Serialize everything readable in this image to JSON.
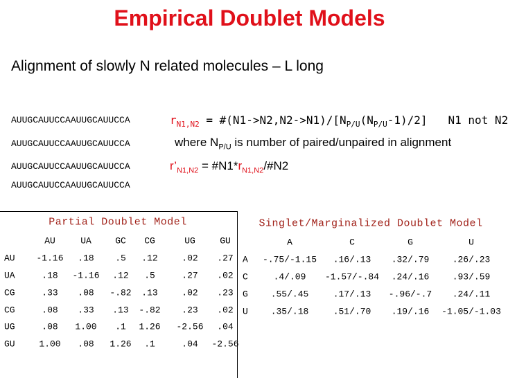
{
  "title": "Empirical Doublet Models",
  "subtitle": "Alignment of slowly N related molecules – L long",
  "sequences": [
    "AUUGCAUUCCAAUUGCAUUCCA",
    "AUUGCAUUCCAAUUGCAUUCCA",
    "AUUGCAUUCCAAUUGCAUUCCA",
    "AUUGCAUUCCAAUUGCAUUCCA"
  ],
  "formulas": [
    {
      "parts": [
        {
          "t": "r",
          "red": true
        },
        {
          "t": "N1,N2",
          "sub": true,
          "red": true
        },
        {
          "t": " =   #(N1->N2,N2->N1)/[N"
        },
        {
          "t": "P/U",
          "sub": true
        },
        {
          "t": "(N"
        },
        {
          "t": "P/U",
          "sub": true
        },
        {
          "t": "-1)/2]"
        }
      ],
      "note": "N1 not N2",
      "mono": true
    },
    {
      "parts": [
        {
          "t": "where N"
        },
        {
          "t": "P/U",
          "sub": true
        },
        {
          "t": " is number of paired/unpaired in alignment"
        }
      ]
    },
    {
      "parts": [
        {
          "t": "r’",
          "red": true
        },
        {
          "t": "N1,N2",
          "sub": true,
          "red": true
        },
        {
          "t": " =     #N1*"
        },
        {
          "t": "r",
          "red": true
        },
        {
          "t": "N1,N2",
          "sub": true,
          "red": true
        },
        {
          "t": "/#N2"
        }
      ]
    }
  ],
  "partial": {
    "title": "Partial Doublet Model",
    "columns": [
      "AU",
      "UA",
      "GC",
      "CG",
      "UG",
      "GU"
    ],
    "row_labels": [
      "AU",
      "UA",
      "CG",
      "CG",
      "UG",
      "GU"
    ],
    "rows": [
      [
        "-1.16",
        ".18",
        ".5",
        ".12",
        ".02",
        ".27"
      ],
      [
        ".18",
        "-1.16",
        ".12",
        ".5",
        ".27",
        ".02"
      ],
      [
        ".33",
        ".08",
        "-.82",
        ".13",
        ".02",
        ".23"
      ],
      [
        ".08",
        ".33",
        ".13",
        "-.82",
        ".23",
        ".02"
      ],
      [
        ".08",
        "1.00",
        ".1",
        "1.26",
        "-2.56",
        ".04"
      ],
      [
        "1.00",
        ".08",
        "1.26",
        ".1",
        ".04",
        "-2.56"
      ]
    ]
  },
  "singlet": {
    "title": "Singlet/Marginalized Doublet Model",
    "columns": [
      "A",
      "C",
      "G",
      "U"
    ],
    "row_labels": [
      "A",
      "C",
      "G",
      "U"
    ],
    "rows": [
      [
        "-.75/-1.15",
        ".16/.13",
        ".32/.79",
        ".26/.23"
      ],
      [
        ".4/.09",
        "-1.57/-.84",
        ".24/.16",
        ".93/.59"
      ],
      [
        ".55/.45",
        ".17/.13",
        "-.96/-.7",
        ".24/.11"
      ],
      [
        ".35/.18",
        ".51/.70",
        ".19/.16",
        "-1.05/-1.03"
      ]
    ]
  }
}
